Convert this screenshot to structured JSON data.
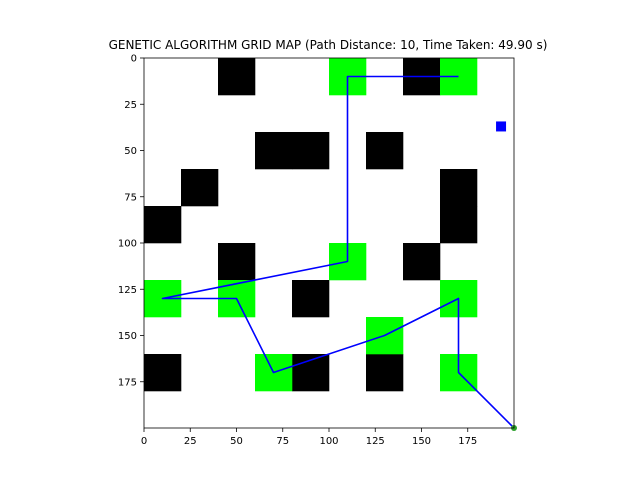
{
  "chart_data": {
    "type": "heatmap",
    "title": "GENETIC ALGORITHM GRID MAP (Path Distance: 10, Time Taken: 49.90 s)",
    "xlabel": "",
    "ylabel": "",
    "xlim": [
      0,
      200
    ],
    "ylim": [
      200,
      0
    ],
    "y_inverted": true,
    "grid": false,
    "cell_size": 20,
    "x_ticks": [
      0,
      25,
      50,
      75,
      100,
      125,
      150,
      175
    ],
    "y_ticks": [
      0,
      25,
      50,
      75,
      100,
      125,
      150,
      175
    ],
    "colors": {
      "obstacle": "#000000",
      "waypoint": "#00ff00",
      "path": "#0000ff",
      "marker": "#0000ff",
      "goal": "#2ca02c"
    },
    "obstacles": [
      [
        40,
        0
      ],
      [
        140,
        0
      ],
      [
        60,
        40
      ],
      [
        80,
        40
      ],
      [
        120,
        40
      ],
      [
        20,
        60
      ],
      [
        160,
        60
      ],
      [
        0,
        80
      ],
      [
        160,
        80
      ],
      [
        40,
        100
      ],
      [
        140,
        100
      ],
      [
        80,
        120
      ],
      [
        0,
        160
      ],
      [
        80,
        160
      ],
      [
        120,
        160
      ]
    ],
    "waypoints": [
      [
        100,
        0
      ],
      [
        160,
        0
      ],
      [
        100,
        100
      ],
      [
        0,
        120
      ],
      [
        40,
        120
      ],
      [
        160,
        120
      ],
      [
        120,
        140
      ],
      [
        60,
        160
      ],
      [
        160,
        160
      ]
    ],
    "path": {
      "x": [
        170,
        110,
        110,
        10,
        50,
        70,
        130,
        170,
        170,
        200
      ],
      "y": [
        10,
        10,
        110,
        130,
        130,
        170,
        150,
        130,
        170,
        200
      ]
    },
    "marker": [
      193,
      37
    ],
    "goal": [
      200,
      200
    ]
  }
}
